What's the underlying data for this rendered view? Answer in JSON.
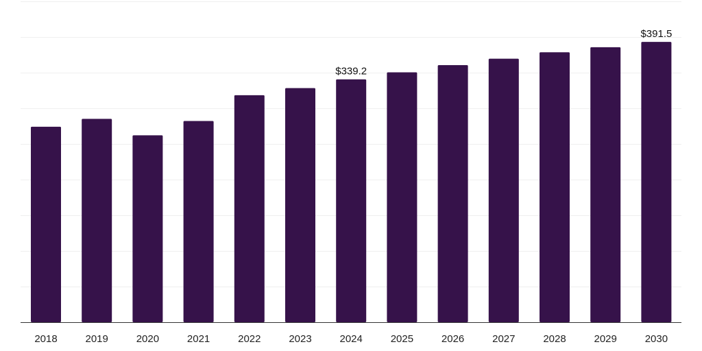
{
  "chart_data": {
    "type": "bar",
    "title": "",
    "xlabel": "",
    "ylabel": "",
    "categories": [
      "2018",
      "2019",
      "2020",
      "2021",
      "2022",
      "2023",
      "2024",
      "2025",
      "2026",
      "2027",
      "2028",
      "2029",
      "2030"
    ],
    "values": [
      273,
      284,
      261,
      281,
      317,
      327,
      339.2,
      349,
      359,
      368,
      377,
      384,
      391.5
    ],
    "ylim": [
      0,
      450
    ],
    "grid": true,
    "data_labels": [
      {
        "category": "2024",
        "text": "$339.2"
      },
      {
        "category": "2030",
        "text": "$391.5"
      }
    ],
    "colors": {
      "bar": "#36124a",
      "grid": "#efefef",
      "axis": "#333333"
    }
  }
}
